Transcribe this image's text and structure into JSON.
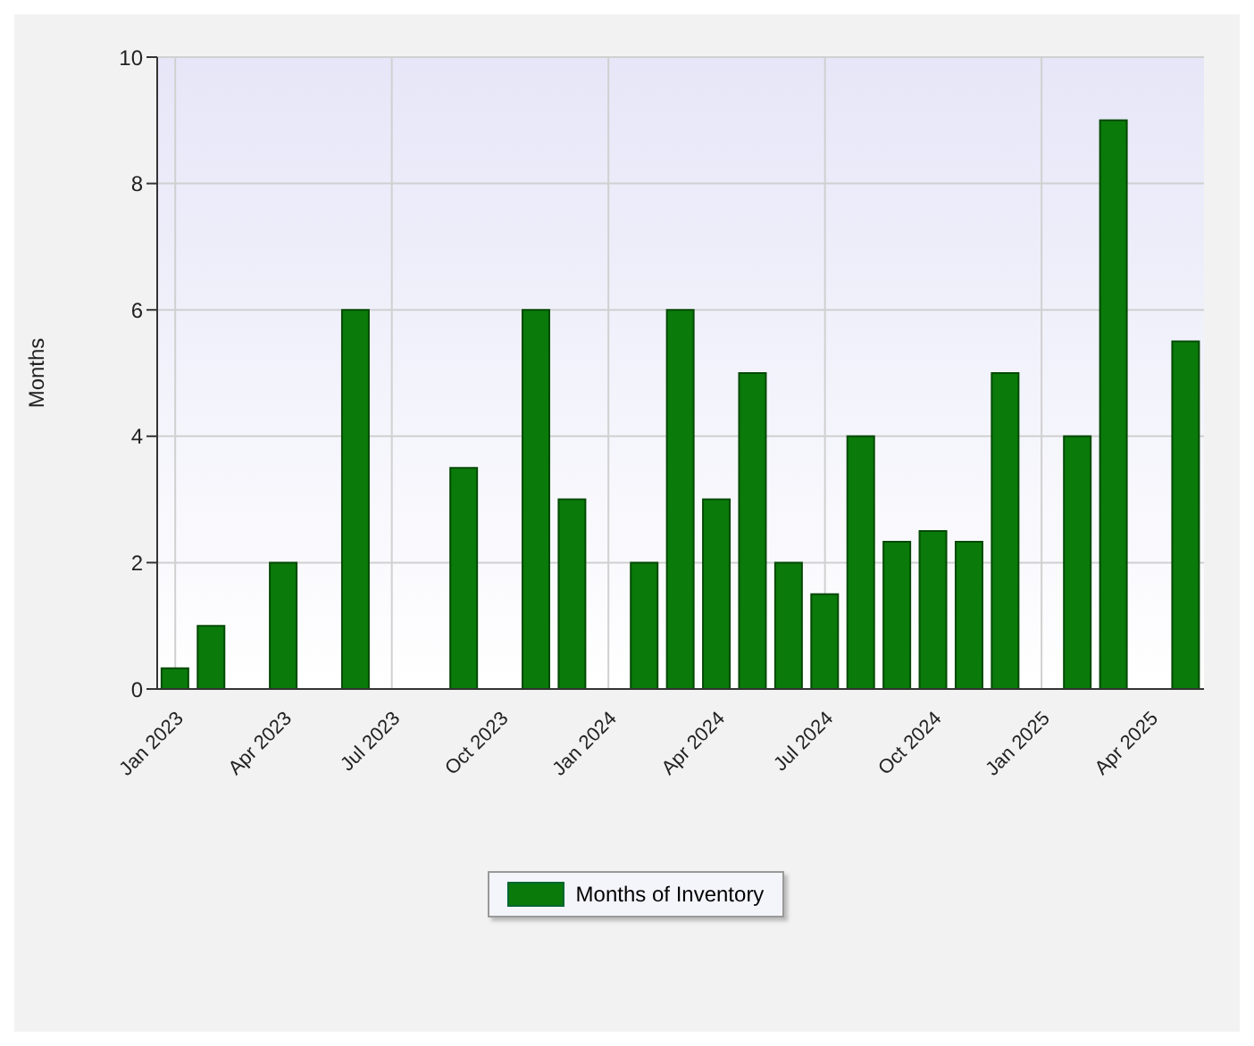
{
  "chart_data": {
    "type": "bar",
    "ylabel": "Months",
    "categories": [
      "Jan 2023",
      null,
      null,
      "Apr 2023",
      null,
      null,
      "Jul 2023",
      null,
      null,
      "Oct 2023",
      null,
      null,
      "Jan 2024",
      null,
      null,
      "Apr 2024",
      null,
      null,
      "Jul 2024",
      null,
      null,
      "Oct 2024",
      null,
      null,
      "Jan 2025",
      null,
      null,
      "Apr 2025",
      null
    ],
    "series": [
      {
        "name": "Months of Inventory",
        "color": "#0a7a0a",
        "values": [
          0.33,
          1,
          null,
          2,
          null,
          6,
          null,
          null,
          3.5,
          null,
          6,
          3,
          null,
          2,
          6,
          3,
          5,
          2,
          1.5,
          4,
          2.33,
          2.5,
          2.33,
          5,
          null,
          4,
          9,
          null,
          5.5
        ]
      }
    ],
    "ylim": [
      0,
      10
    ],
    "yticks": [
      0,
      2,
      4,
      6,
      8,
      10
    ],
    "grid": true,
    "legend": "bottom"
  }
}
